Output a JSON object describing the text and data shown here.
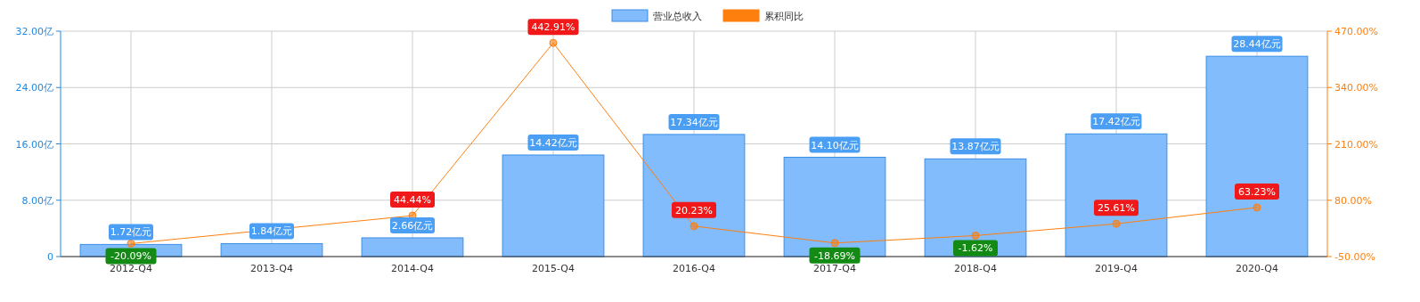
{
  "chart_data": {
    "type": "bar",
    "categories": [
      "2012-Q4",
      "2013-Q4",
      "2014-Q4",
      "2015-Q4",
      "2016-Q4",
      "2017-Q4",
      "2018-Q4",
      "2019-Q4",
      "2020-Q4"
    ],
    "series": [
      {
        "name": "营业总收入",
        "color": "#82bcfc",
        "values": [
          1.72,
          1.84,
          2.66,
          14.42,
          17.34,
          14.1,
          13.87,
          17.42,
          28.44
        ],
        "value_labels": [
          "1.72亿元",
          "1.84亿元",
          "2.66亿元",
          "14.42亿元",
          "17.34亿元",
          "14.10亿元",
          "13.87亿元",
          "17.42亿元",
          "28.44亿元"
        ]
      },
      {
        "name": "累积同比",
        "type": "line",
        "axis": "y2",
        "color": "#ff7f0e",
        "marker": "circle",
        "values": [
          -20.09,
          null,
          44.44,
          442.91,
          20.23,
          -18.69,
          -1.62,
          25.61,
          63.23
        ],
        "value_labels": [
          "-20.09%",
          null,
          "44.44%",
          "442.91%",
          "20.23%",
          "-18.69%",
          "-1.62%",
          "25.61%",
          "63.23%"
        ]
      }
    ],
    "ylim": [
      0,
      32
    ],
    "yticks": [
      {
        "value": 0,
        "label": "0"
      },
      {
        "value": 8,
        "label": "8.00亿"
      },
      {
        "value": 16,
        "label": "16.00亿"
      },
      {
        "value": 24,
        "label": "24.00亿"
      },
      {
        "value": 32,
        "label": "32.00亿"
      }
    ],
    "y2lim": [
      -50,
      470
    ],
    "y2ticks": [
      {
        "value": -50,
        "label": "-50.00%"
      },
      {
        "value": 80,
        "label": "80.00%"
      },
      {
        "value": 210,
        "label": "210.00%"
      },
      {
        "value": 340,
        "label": "340.00%"
      },
      {
        "value": 470,
        "label": "470.00%"
      }
    ],
    "grid": true,
    "legend": "top"
  }
}
